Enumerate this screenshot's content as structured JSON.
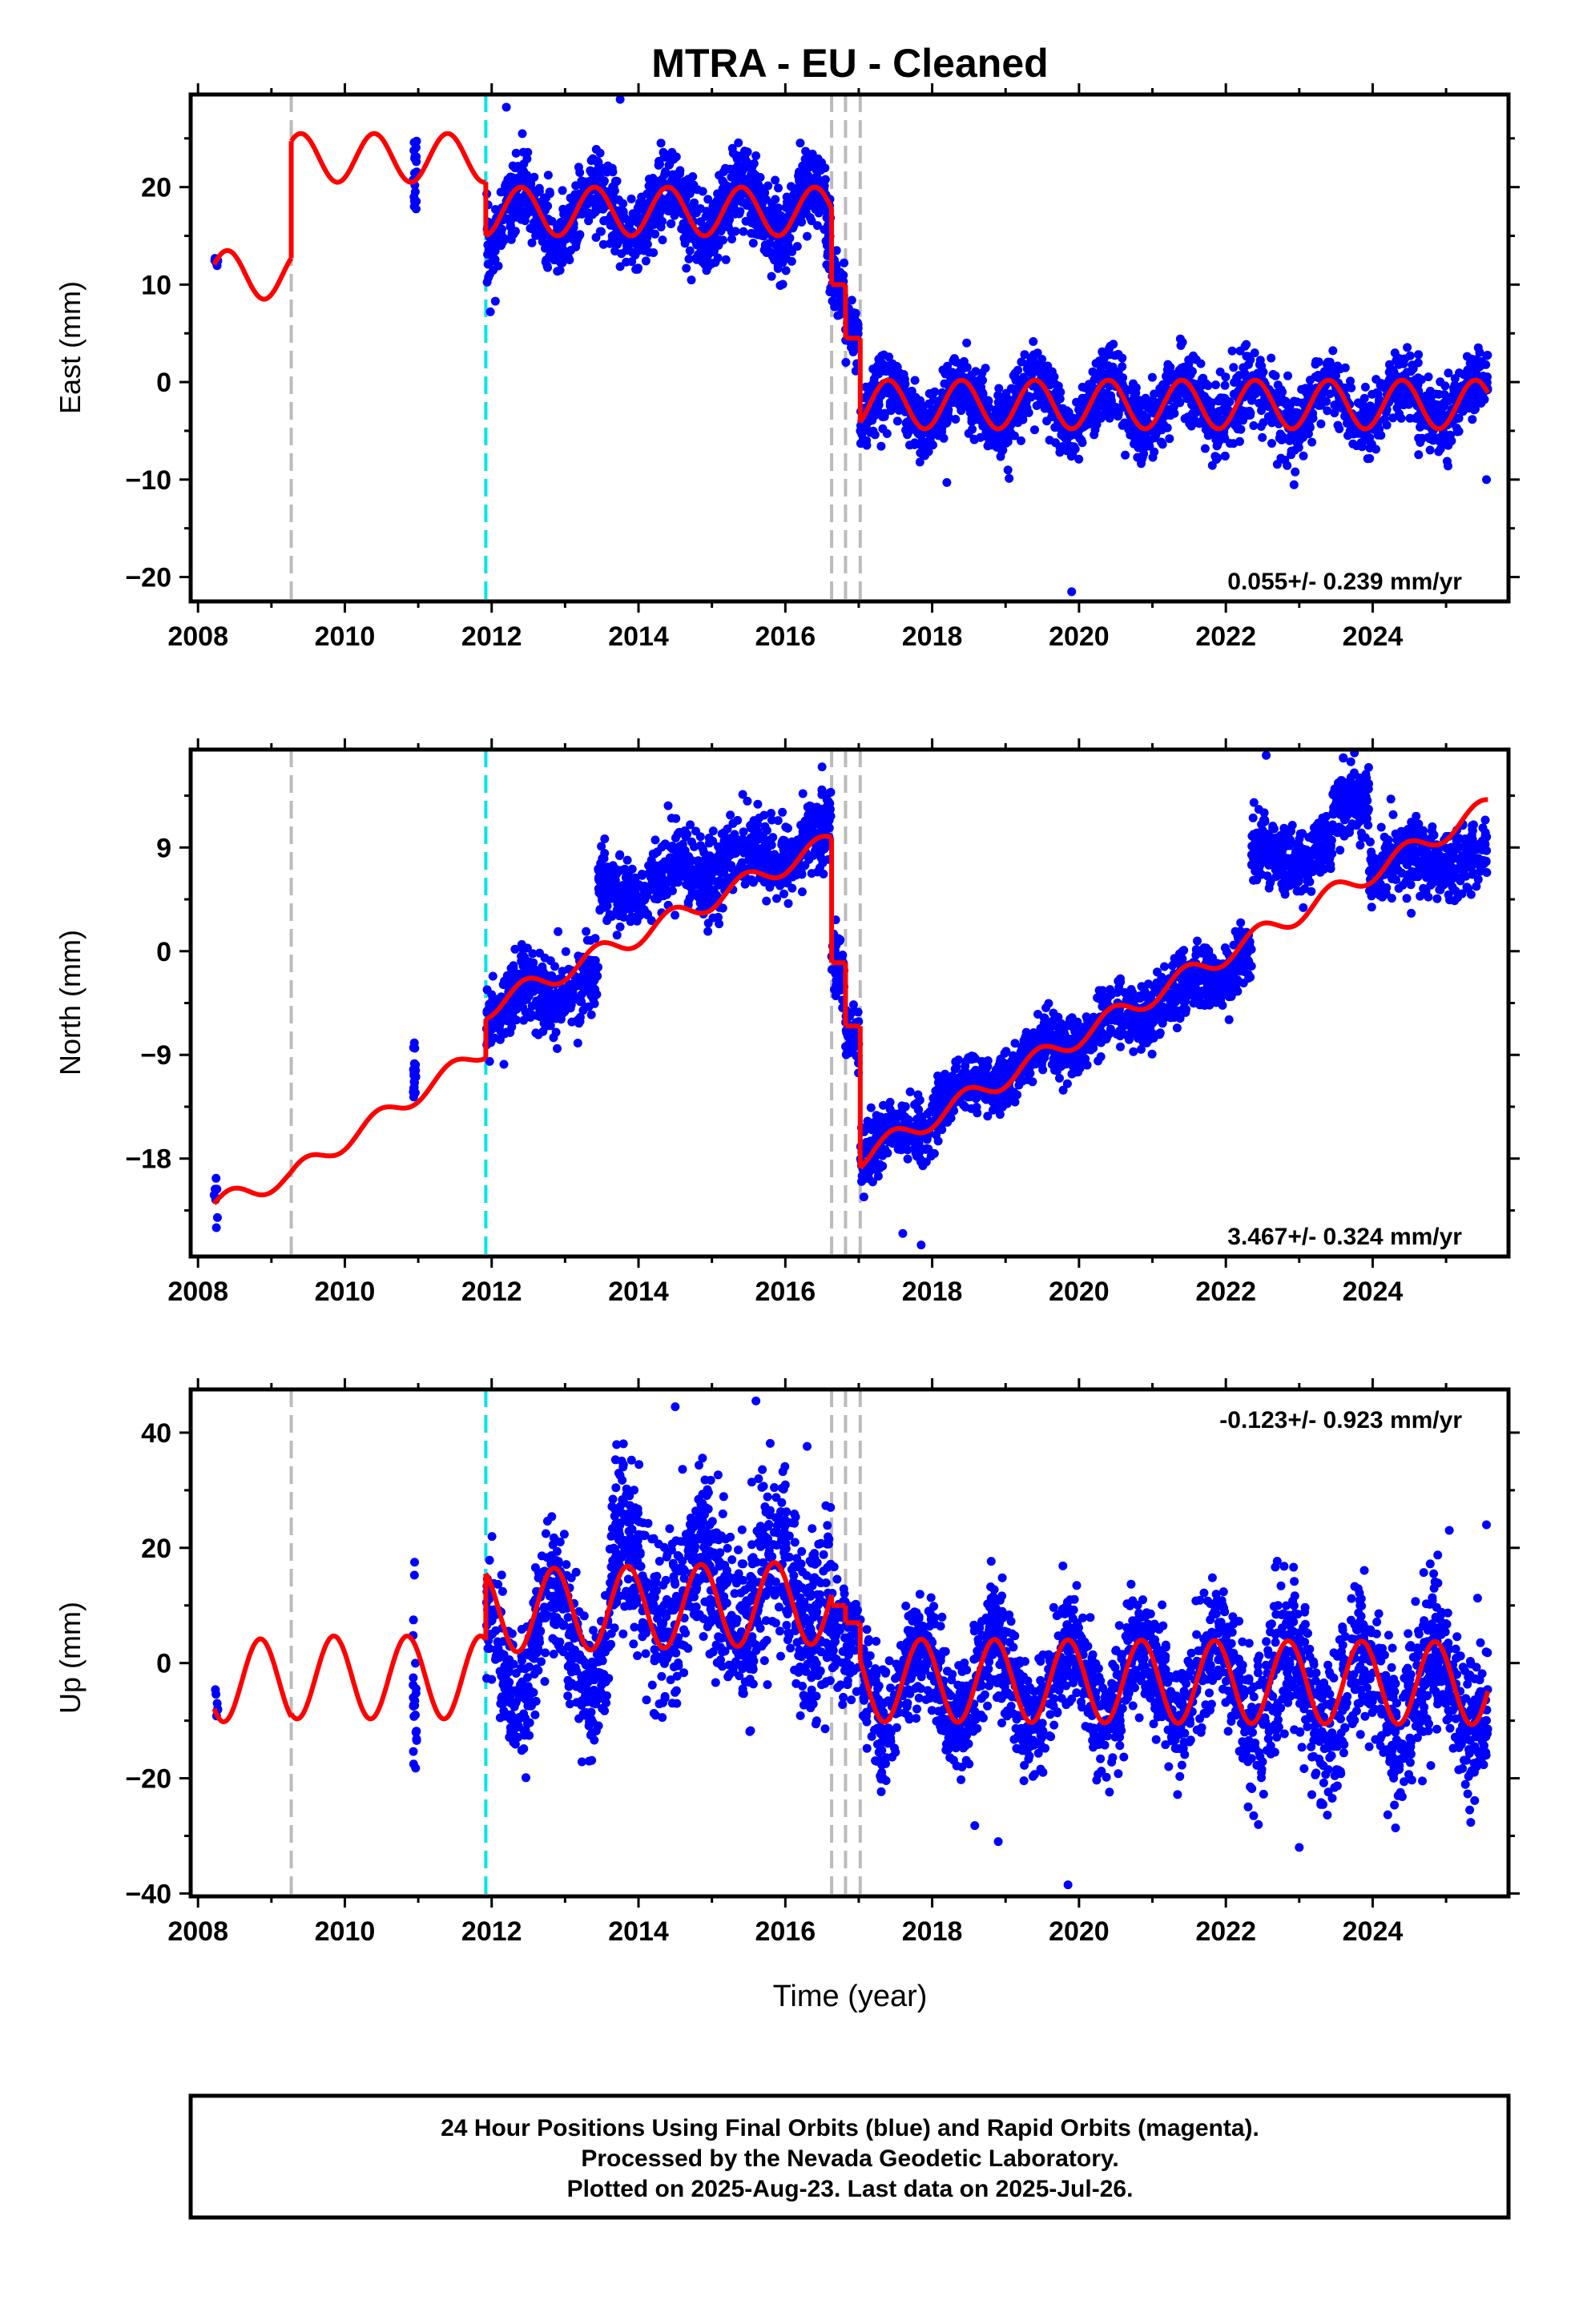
{
  "title": "MTRA  - EU - Cleaned",
  "xlabel": "Time (year)",
  "footer": {
    "line1": "24 Hour Positions Using Final Orbits (blue) and Rapid Orbits (magenta).",
    "line2": "Processed by the Nevada Geodetic Laboratory.",
    "line3": "Plotted on 2025-Aug-23. Last data on 2025-Jul-26."
  },
  "colors": {
    "data": "#0000ff",
    "model": "#ff0000",
    "equipment_change": "#bbbbbb",
    "earthquake": "#00e5e5",
    "frame": "#000000"
  },
  "chart_data": [
    {
      "type": "scatter",
      "component": "east",
      "ylabel": "East (mm)",
      "rate_label": "0.055+/- 0.239 mm/yr",
      "xlim": [
        2007.9,
        2025.85
      ],
      "ylim": [
        -22.5,
        29.5
      ],
      "xticks": [
        2008,
        2010,
        2012,
        2014,
        2016,
        2018,
        2020,
        2022,
        2024
      ],
      "yticks": [
        -20,
        -10,
        0,
        10,
        20
      ],
      "grid": false,
      "equipment_change_lines": [
        2009.27,
        2016.63,
        2016.82,
        2017.02
      ],
      "earthquake_lines": [
        2011.92
      ],
      "series": [
        {
          "style": "points",
          "segments": [
            {
              "start": 2008.22,
              "end": 2008.27,
              "y0": 12.5,
              "y1": 12.6,
              "amp": 0,
              "phase": 0,
              "scatter": 0.4,
              "n": 6
            },
            {
              "start": 2010.93,
              "end": 2010.98,
              "y0": 21.5,
              "y1": 21.5,
              "amp": 0,
              "phase": 0,
              "scatter": 2.5,
              "n": 18
            },
            {
              "start": 2011.93,
              "end": 2016.55,
              "y0": 16.5,
              "y1": 18.0,
              "amp": 2.7,
              "phase": 0.15,
              "scatter": 2.0,
              "n": 1200
            },
            {
              "start": 2016.55,
              "end": 2016.62,
              "y0": 16.5,
              "y1": 14.0,
              "amp": 0,
              "phase": 0,
              "scatter": 2.0,
              "n": 30
            },
            {
              "start": 2016.63,
              "end": 2016.8,
              "y0": 11.0,
              "y1": 9.0,
              "amp": 0,
              "phase": 0,
              "scatter": 1.5,
              "n": 50
            },
            {
              "start": 2016.82,
              "end": 2017.0,
              "y0": 5.5,
              "y1": 4.5,
              "amp": 0,
              "phase": 0,
              "scatter": 1.5,
              "n": 50
            },
            {
              "start": 2017.02,
              "end": 2025.57,
              "y0": -2.5,
              "y1": -2.2,
              "amp": 2.3,
              "phase": 0.15,
              "scatter": 1.8,
              "n": 2000
            }
          ],
          "outliers": [
            {
              "x": 2012.2,
              "y": 28.2
            },
            {
              "x": 2013.75,
              "y": 29.0
            },
            {
              "x": 2012.05,
              "y": 8.3
            },
            {
              "x": 2019.9,
              "y": -21.5
            },
            {
              "x": 2025.55,
              "y": -10.0
            },
            {
              "x": 2018.2,
              "y": -10.3
            }
          ]
        },
        {
          "style": "line",
          "segments": [
            {
              "start": 2008.22,
              "end": 2009.27,
              "y0": 11.0,
              "y1": 11.0,
              "amp": 2.5,
              "phase": 0.15
            },
            {
              "start": 2009.27,
              "end": 2011.92,
              "y0": 23.0,
              "y1": 23.0,
              "amp": 2.5,
              "phase": 0.15
            },
            {
              "start": 2011.92,
              "end": 2016.63,
              "y0": 17.5,
              "y1": 17.5,
              "amp": 2.5,
              "phase": 0.15
            },
            {
              "start": 2016.63,
              "end": 2016.82,
              "y0": 10.0,
              "y1": 10.0,
              "amp": 0,
              "phase": 0
            },
            {
              "start": 2016.82,
              "end": 2017.02,
              "y0": 4.5,
              "y1": 4.5,
              "amp": 0,
              "phase": 0
            },
            {
              "start": 2017.02,
              "end": 2025.57,
              "y0": -2.3,
              "y1": -2.3,
              "amp": 2.5,
              "phase": 0.15
            }
          ]
        }
      ]
    },
    {
      "type": "scatter",
      "component": "north",
      "ylabel": "North (mm)",
      "rate_label": "3.467+/- 0.324 mm/yr",
      "xlim": [
        2007.9,
        2025.85
      ],
      "ylim": [
        -26.5,
        17.5
      ],
      "xticks": [
        2008,
        2010,
        2012,
        2014,
        2016,
        2018,
        2020,
        2022,
        2024
      ],
      "yticks": [
        -18,
        -9,
        0,
        9
      ],
      "grid": false,
      "equipment_change_lines": [
        2009.27,
        2016.63,
        2016.82,
        2017.02
      ],
      "earthquake_lines": [
        2011.92
      ],
      "series": [
        {
          "style": "points",
          "segments": [
            {
              "start": 2008.22,
              "end": 2008.27,
              "y0": -21.5,
              "y1": -21.0,
              "amp": 0,
              "phase": 0,
              "scatter": 1.0,
              "n": 6
            },
            {
              "start": 2010.93,
              "end": 2010.98,
              "y0": -10.5,
              "y1": -10.5,
              "amp": 0,
              "phase": 0,
              "scatter": 1.5,
              "n": 18
            },
            {
              "start": 2011.93,
              "end": 2013.45,
              "y0": -5.0,
              "y1": -2.5,
              "amp": 1.0,
              "phase": 0.2,
              "scatter": 1.6,
              "n": 380
            },
            {
              "start": 2013.45,
              "end": 2016.55,
              "y0": 5.0,
              "y1": 9.5,
              "amp": 1.0,
              "phase": 0.2,
              "scatter": 1.6,
              "n": 800
            },
            {
              "start": 2016.55,
              "end": 2016.62,
              "y0": 11.0,
              "y1": 11.5,
              "amp": 0,
              "phase": 0,
              "scatter": 1.3,
              "n": 25
            },
            {
              "start": 2016.63,
              "end": 2016.8,
              "y0": 0.0,
              "y1": -2.0,
              "amp": 0,
              "phase": 0,
              "scatter": 1.5,
              "n": 50
            },
            {
              "start": 2016.82,
              "end": 2017.0,
              "y0": -7.0,
              "y1": -8.0,
              "amp": 0,
              "phase": 0,
              "scatter": 1.5,
              "n": 50
            },
            {
              "start": 2017.02,
              "end": 2018.0,
              "y0": -17.5,
              "y1": -14.5,
              "amp": 0.9,
              "phase": 0.2,
              "scatter": 1.3,
              "n": 250
            },
            {
              "start": 2018.0,
              "end": 2022.35,
              "y0": -13.5,
              "y1": -0.5,
              "amp": 0.9,
              "phase": 0.2,
              "scatter": 1.3,
              "n": 1100
            },
            {
              "start": 2022.35,
              "end": 2023.45,
              "y0": 8.0,
              "y1": 8.5,
              "amp": 0.8,
              "phase": 0.2,
              "scatter": 1.4,
              "n": 280
            },
            {
              "start": 2023.45,
              "end": 2023.95,
              "y0": 13.0,
              "y1": 13.0,
              "amp": 0,
              "phase": 0,
              "scatter": 1.5,
              "n": 150
            },
            {
              "start": 2023.95,
              "end": 2025.57,
              "y0": 7.5,
              "y1": 8.0,
              "amp": 0.8,
              "phase": 0.2,
              "scatter": 1.5,
              "n": 400
            }
          ],
          "outliers": [
            {
              "x": 2008.25,
              "y": -24.0
            },
            {
              "x": 2017.6,
              "y": -24.5
            },
            {
              "x": 2017.85,
              "y": -25.5
            },
            {
              "x": 2022.55,
              "y": 17.0
            },
            {
              "x": 2023.6,
              "y": 16.8
            },
            {
              "x": 2016.5,
              "y": 16.0
            }
          ]
        },
        {
          "style": "line",
          "segments": [
            {
              "start": 2008.22,
              "end": 2009.27,
              "y0": -22.0,
              "y1": -19.5,
              "amp": 0.8,
              "phase": 0.2
            },
            {
              "start": 2009.27,
              "end": 2011.92,
              "y0": -19.5,
              "y1": -8.5,
              "amp": 0.8,
              "phase": 0.2
            },
            {
              "start": 2011.92,
              "end": 2016.63,
              "y0": -5.0,
              "y1": 9.5,
              "amp": 0.9,
              "phase": 0.2
            },
            {
              "start": 2016.63,
              "end": 2016.82,
              "y0": -1.0,
              "y1": -1.0,
              "amp": 0,
              "phase": 0
            },
            {
              "start": 2016.82,
              "end": 2017.02,
              "y0": -6.5,
              "y1": -6.5,
              "amp": 0,
              "phase": 0
            },
            {
              "start": 2017.02,
              "end": 2025.57,
              "y0": -18.0,
              "y1": 12.5,
              "amp": 0.9,
              "phase": 0.2
            }
          ]
        }
      ]
    },
    {
      "type": "scatter",
      "component": "up",
      "ylabel": "Up (mm)",
      "rate_label": "-0.123+/- 0.923 mm/yr",
      "xlim": [
        2007.9,
        2025.85
      ],
      "ylim": [
        -40.5,
        47.5
      ],
      "xticks": [
        2008,
        2010,
        2012,
        2014,
        2016,
        2018,
        2020,
        2022,
        2024
      ],
      "yticks": [
        -40,
        -20,
        0,
        20,
        40
      ],
      "grid": false,
      "equipment_change_lines": [
        2009.27,
        2016.63,
        2016.82,
        2017.02
      ],
      "earthquake_lines": [
        2011.92
      ],
      "series": [
        {
          "style": "points",
          "segments": [
            {
              "start": 2008.22,
              "end": 2008.27,
              "y0": -7.0,
              "y1": -7.0,
              "amp": 0,
              "phase": 0,
              "scatter": 1.5,
              "n": 6
            },
            {
              "start": 2010.93,
              "end": 2010.98,
              "y0": -7.0,
              "y1": -7.0,
              "amp": 0,
              "phase": 0,
              "scatter": 7.0,
              "n": 22
            },
            {
              "start": 2011.93,
              "end": 2013.6,
              "y0": 2.0,
              "y1": 5.0,
              "amp": 9.0,
              "phase": 0.6,
              "scatter": 5.5,
              "n": 450
            },
            {
              "start": 2013.6,
              "end": 2016.62,
              "y0": 13.0,
              "y1": 12.0,
              "amp": 7.0,
              "phase": 0.6,
              "scatter": 7.5,
              "n": 900
            },
            {
              "start": 2016.63,
              "end": 2017.0,
              "y0": 6.0,
              "y1": 4.0,
              "amp": 0,
              "phase": 0,
              "scatter": 5.0,
              "n": 90
            },
            {
              "start": 2017.02,
              "end": 2022.3,
              "y0": -3.5,
              "y1": -3.0,
              "amp": 7.0,
              "phase": 0.6,
              "scatter": 5.0,
              "n": 1400
            },
            {
              "start": 2022.3,
              "end": 2025.57,
              "y0": -5.5,
              "y1": -4.0,
              "amp": 7.0,
              "phase": 0.6,
              "scatter": 6.5,
              "n": 850
            }
          ],
          "outliers": [
            {
              "x": 2015.6,
              "y": 45.5
            },
            {
              "x": 2014.5,
              "y": 44.5
            },
            {
              "x": 2019.85,
              "y": -38.5
            },
            {
              "x": 2018.9,
              "y": -31.0
            },
            {
              "x": 2010.95,
              "y": 17.5
            },
            {
              "x": 2025.55,
              "y": 24.0
            },
            {
              "x": 2023.0,
              "y": -32.0
            }
          ]
        },
        {
          "style": "line",
          "segments": [
            {
              "start": 2008.22,
              "end": 2009.27,
              "y0": -3.0,
              "y1": -3.0,
              "amp": 7.2,
              "phase": 0.6
            },
            {
              "start": 2009.27,
              "end": 2011.92,
              "y0": -2.5,
              "y1": -2.5,
              "amp": 7.2,
              "phase": 0.6
            },
            {
              "start": 2011.92,
              "end": 2016.63,
              "y0": 9.0,
              "y1": 10.5,
              "amp": 7.2,
              "phase": 0.6
            },
            {
              "start": 2016.63,
              "end": 2016.82,
              "y0": 10.0,
              "y1": 10.0,
              "amp": 0,
              "phase": 0
            },
            {
              "start": 2016.82,
              "end": 2017.02,
              "y0": 7.0,
              "y1": 7.0,
              "amp": 0,
              "phase": 0
            },
            {
              "start": 2017.02,
              "end": 2025.57,
              "y0": -3.0,
              "y1": -3.5,
              "amp": 7.2,
              "phase": 0.6
            }
          ]
        }
      ]
    }
  ]
}
